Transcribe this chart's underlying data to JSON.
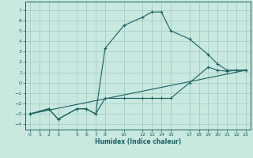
{
  "xlabel": "Humidex (Indice chaleur)",
  "ylabel": "",
  "background_color": "#c8e8e0",
  "grid_color": "#a0c8c0",
  "line_color": "#1a6060",
  "xlim": [
    -0.5,
    23.5
  ],
  "ylim": [
    -4.5,
    7.8
  ],
  "xticks": [
    0,
    1,
    2,
    3,
    5,
    6,
    7,
    8,
    10,
    12,
    13,
    14,
    15,
    17,
    18,
    19,
    20,
    21,
    22,
    23
  ],
  "yticks": [
    -4,
    -3,
    -2,
    -1,
    0,
    1,
    2,
    3,
    4,
    5,
    6,
    7
  ],
  "line1_x": [
    0,
    2,
    3,
    5,
    6,
    7,
    8,
    10,
    12,
    13,
    14,
    15,
    17,
    19,
    20,
    21,
    22,
    23
  ],
  "line1_y": [
    -3.0,
    -2.5,
    -3.5,
    -2.5,
    -2.5,
    -3.0,
    3.3,
    5.5,
    6.3,
    6.8,
    6.8,
    5.0,
    4.2,
    2.7,
    1.8,
    1.2,
    1.2,
    1.2
  ],
  "line2_x": [
    0,
    2,
    3,
    5,
    6,
    7,
    8,
    10,
    12,
    13,
    14,
    15,
    17,
    19,
    20,
    21,
    22,
    23
  ],
  "line2_y": [
    -3.0,
    -2.5,
    -3.5,
    -2.5,
    -2.5,
    -3.0,
    -1.5,
    -1.5,
    -1.5,
    -1.5,
    -1.5,
    -1.5,
    0.0,
    1.5,
    1.2,
    1.1,
    1.2,
    1.2
  ],
  "line3_x": [
    0,
    23
  ],
  "line3_y": [
    -3.0,
    1.2
  ]
}
